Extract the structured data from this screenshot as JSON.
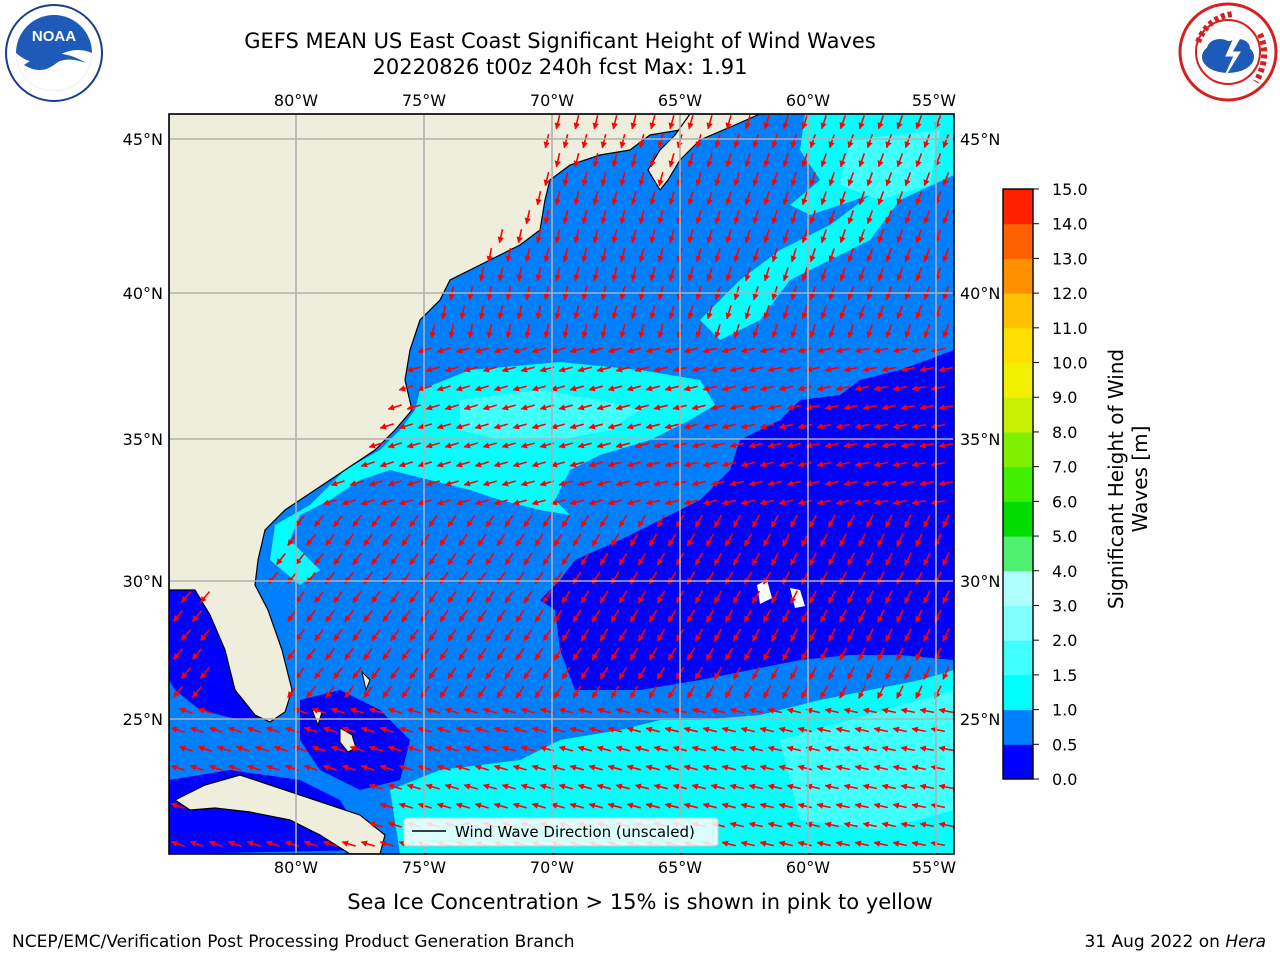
{
  "title": {
    "line1": "GEFS MEAN US East Coast Significant Height of Wind Waves",
    "line2": "20220826 t00z 240h fcst   Max: 1.91"
  },
  "map": {
    "lon_labels": [
      "80°W",
      "75°W",
      "70°W",
      "65°W",
      "60°W",
      "55°W"
    ],
    "lat_labels": [
      "45°N",
      "40°N",
      "35°N",
      "30°N",
      "25°N"
    ],
    "land_color": "#efeedc",
    "legend_label": "Wind Wave Direction (unscaled)",
    "arrow_color": "#ff0000"
  },
  "colorbar": {
    "label": "Significant Height of Wind Waves [m]",
    "ticks": [
      "0.0",
      "0.5",
      "1.0",
      "1.5",
      "2.0",
      "3.0",
      "4.0",
      "5.0",
      "6.0",
      "7.0",
      "8.0",
      "9.0",
      "10.0",
      "11.0",
      "12.0",
      "13.0",
      "14.0",
      "15.0"
    ],
    "colors": [
      "#0000ff",
      "#0080ff",
      "#00ffff",
      "#40ffff",
      "#80ffff",
      "#b0ffff",
      "#50f070",
      "#00dc00",
      "#40f000",
      "#80f000",
      "#c8f000",
      "#f0f000",
      "#ffe000",
      "#ffc000",
      "#ff9000",
      "#ff6000",
      "#ff2000"
    ]
  },
  "ice_note": "Sea Ice Concentration > 15% is shown in pink to yellow",
  "footer": {
    "left": "NCEP/EMC/Verification Post Processing Product Generation Branch",
    "date": "31 Aug 2022 on ",
    "machine": "Hera"
  },
  "logos": {
    "left": "noaa-logo",
    "right": "nws-logo"
  }
}
